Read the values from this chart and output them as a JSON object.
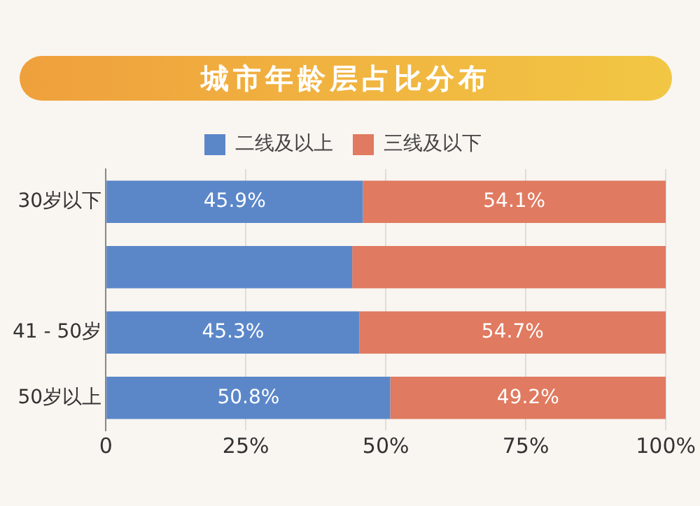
{
  "chart_data": {
    "type": "bar",
    "orientation": "horizontal",
    "stacked": true,
    "title": "城市年龄层占比分布",
    "categories": [
      "30岁以下",
      null,
      "41 - 50岁",
      "50岁以上"
    ],
    "series": [
      {
        "name": "二线及以上",
        "color": "#5b87c9",
        "values": [
          45.9,
          44,
          45.3,
          50.8
        ],
        "value_labels": [
          "45.9%",
          null,
          "45.3%",
          "50.8%"
        ]
      },
      {
        "name": "三线及以下",
        "color": "#e07a60",
        "values": [
          54.1,
          56,
          54.7,
          49.2
        ],
        "value_labels": [
          "54.1%",
          null,
          "54.7%",
          "49.2%"
        ]
      }
    ],
    "xlim": [
      0,
      100
    ],
    "xticks": [
      0,
      {
        "value": 25,
        "label": "25%"
      },
      {
        "value": 50,
        "label": "50%"
      },
      {
        "value": 75,
        "label": "75%"
      },
      {
        "value": 100,
        "label": "100%"
      }
    ],
    "grid": "x",
    "legend": "top"
  }
}
